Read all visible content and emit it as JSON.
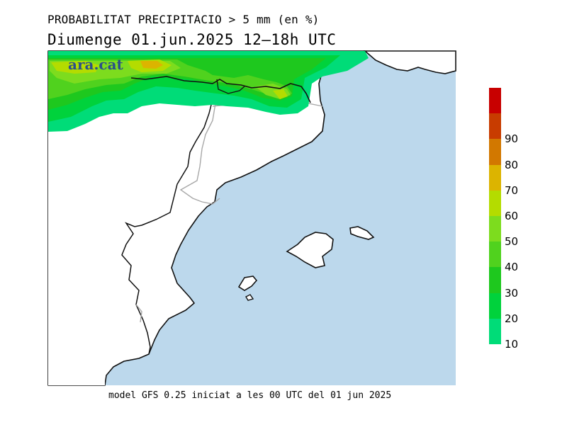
{
  "header": {
    "title": "PROBABILITAT PRECIPITACIO > 5 mm (en %)",
    "subtitle": "Diumenge  01.jun.2025  12–18h  UTC"
  },
  "logo": {
    "text": "ara.cat"
  },
  "footer": {
    "text": "model GFS 0.25 iniciat a les 00 UTC del 01 jun 2025"
  },
  "colors": {
    "sea": "#bcd8ec",
    "land": "#ffffff",
    "coast": "#111111",
    "borders": "#a8a8a8"
  },
  "legend": {
    "levels": [
      {
        "value": "10",
        "color": "#00dc78"
      },
      {
        "value": "20",
        "color": "#00d23c"
      },
      {
        "value": "30",
        "color": "#1ec81e"
      },
      {
        "value": "40",
        "color": "#50d21e"
      },
      {
        "value": "50",
        "color": "#7ddc1e"
      },
      {
        "value": "60",
        "color": "#b4dc00"
      },
      {
        "value": "70",
        "color": "#dcb400"
      },
      {
        "value": "80",
        "color": "#d27800"
      },
      {
        "value": "90",
        "color": "#c83c00"
      },
      {
        "value": "",
        "color": "#c80000"
      }
    ]
  }
}
